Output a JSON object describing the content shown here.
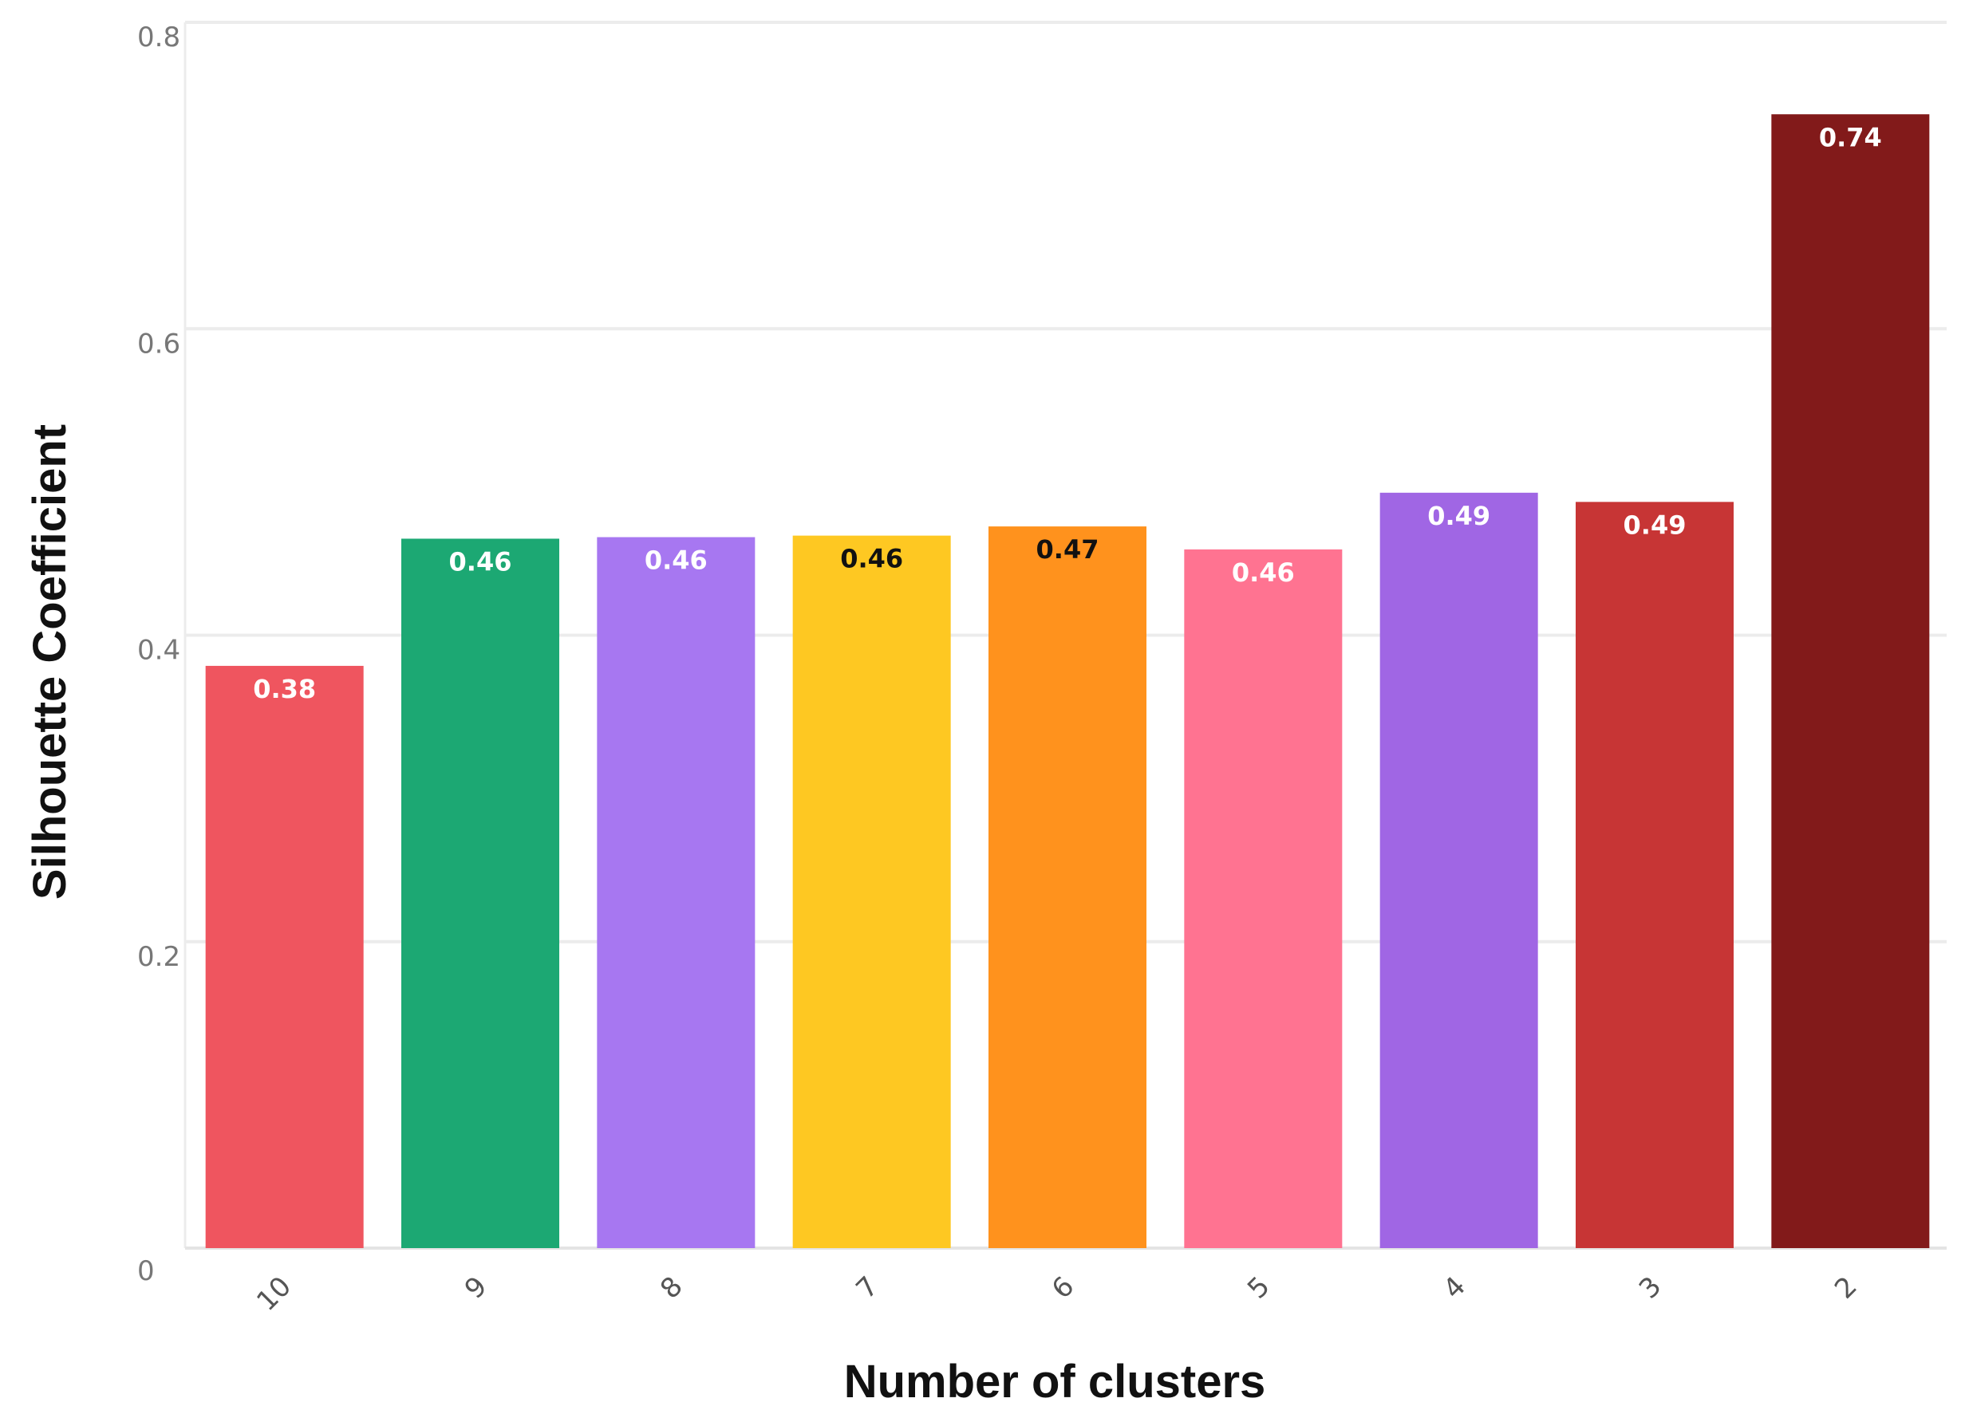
{
  "chart_data": {
    "type": "bar",
    "xlabel": "Number of clusters",
    "ylabel": "Silhouette Coefficient",
    "ylim": [
      0,
      0.8
    ],
    "yticks": [
      0,
      0.2,
      0.4,
      0.6,
      0.8
    ],
    "ytick_labels": [
      "0",
      "0.2",
      "0.4",
      "0.6",
      "0.8"
    ],
    "grid": true,
    "categories": [
      "10",
      "9",
      "8",
      "7",
      "6",
      "5",
      "4",
      "3",
      "2"
    ],
    "values": [
      0.38,
      0.463,
      0.464,
      0.465,
      0.471,
      0.456,
      0.493,
      0.487,
      0.74
    ],
    "data_labels": [
      "0.38",
      "0.46",
      "0.46",
      "0.46",
      "0.47",
      "0.46",
      "0.49",
      "0.49",
      "0.74"
    ],
    "colors": [
      "#ef555f",
      "#1ca873",
      "#a777f1",
      "#fec822",
      "#ff921d",
      "#ff7391",
      "#a066e4",
      "#c73535",
      "#821a1a"
    ],
    "label_colors": [
      "#ffffff",
      "#ffffff",
      "#ffffff",
      "#111111",
      "#111111",
      "#ffffff",
      "#ffffff",
      "#ffffff",
      "#ffffff"
    ]
  }
}
